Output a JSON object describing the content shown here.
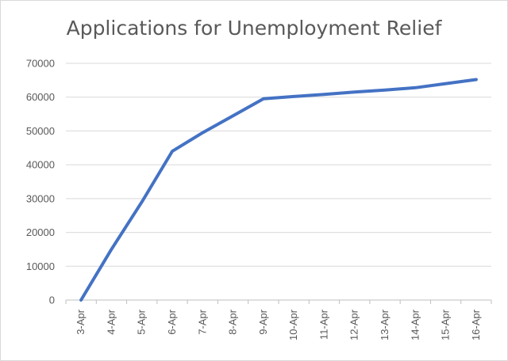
{
  "chart_data": {
    "type": "line",
    "title": "Applications for Unemployment Relief",
    "xlabel": "",
    "ylabel": "",
    "ylim": [
      0,
      70000
    ],
    "yticks": [
      0,
      10000,
      20000,
      30000,
      40000,
      50000,
      60000,
      70000
    ],
    "categories": [
      "3-Apr",
      "4-Apr",
      "5-Apr",
      "6-Apr",
      "7-Apr",
      "8-Apr",
      "9-Apr",
      "10-Apr",
      "11-Apr",
      "12-Apr",
      "13-Apr",
      "14-Apr",
      "15-Apr",
      "16-Apr"
    ],
    "series": [
      {
        "values": [
          0,
          15000,
          29000,
          44000,
          49500,
          54500,
          59500,
          60200,
          60800,
          61500,
          62100,
          62800,
          64000,
          65200
        ]
      }
    ],
    "grid": true,
    "legend": "none",
    "line_color": "#4472c4"
  }
}
